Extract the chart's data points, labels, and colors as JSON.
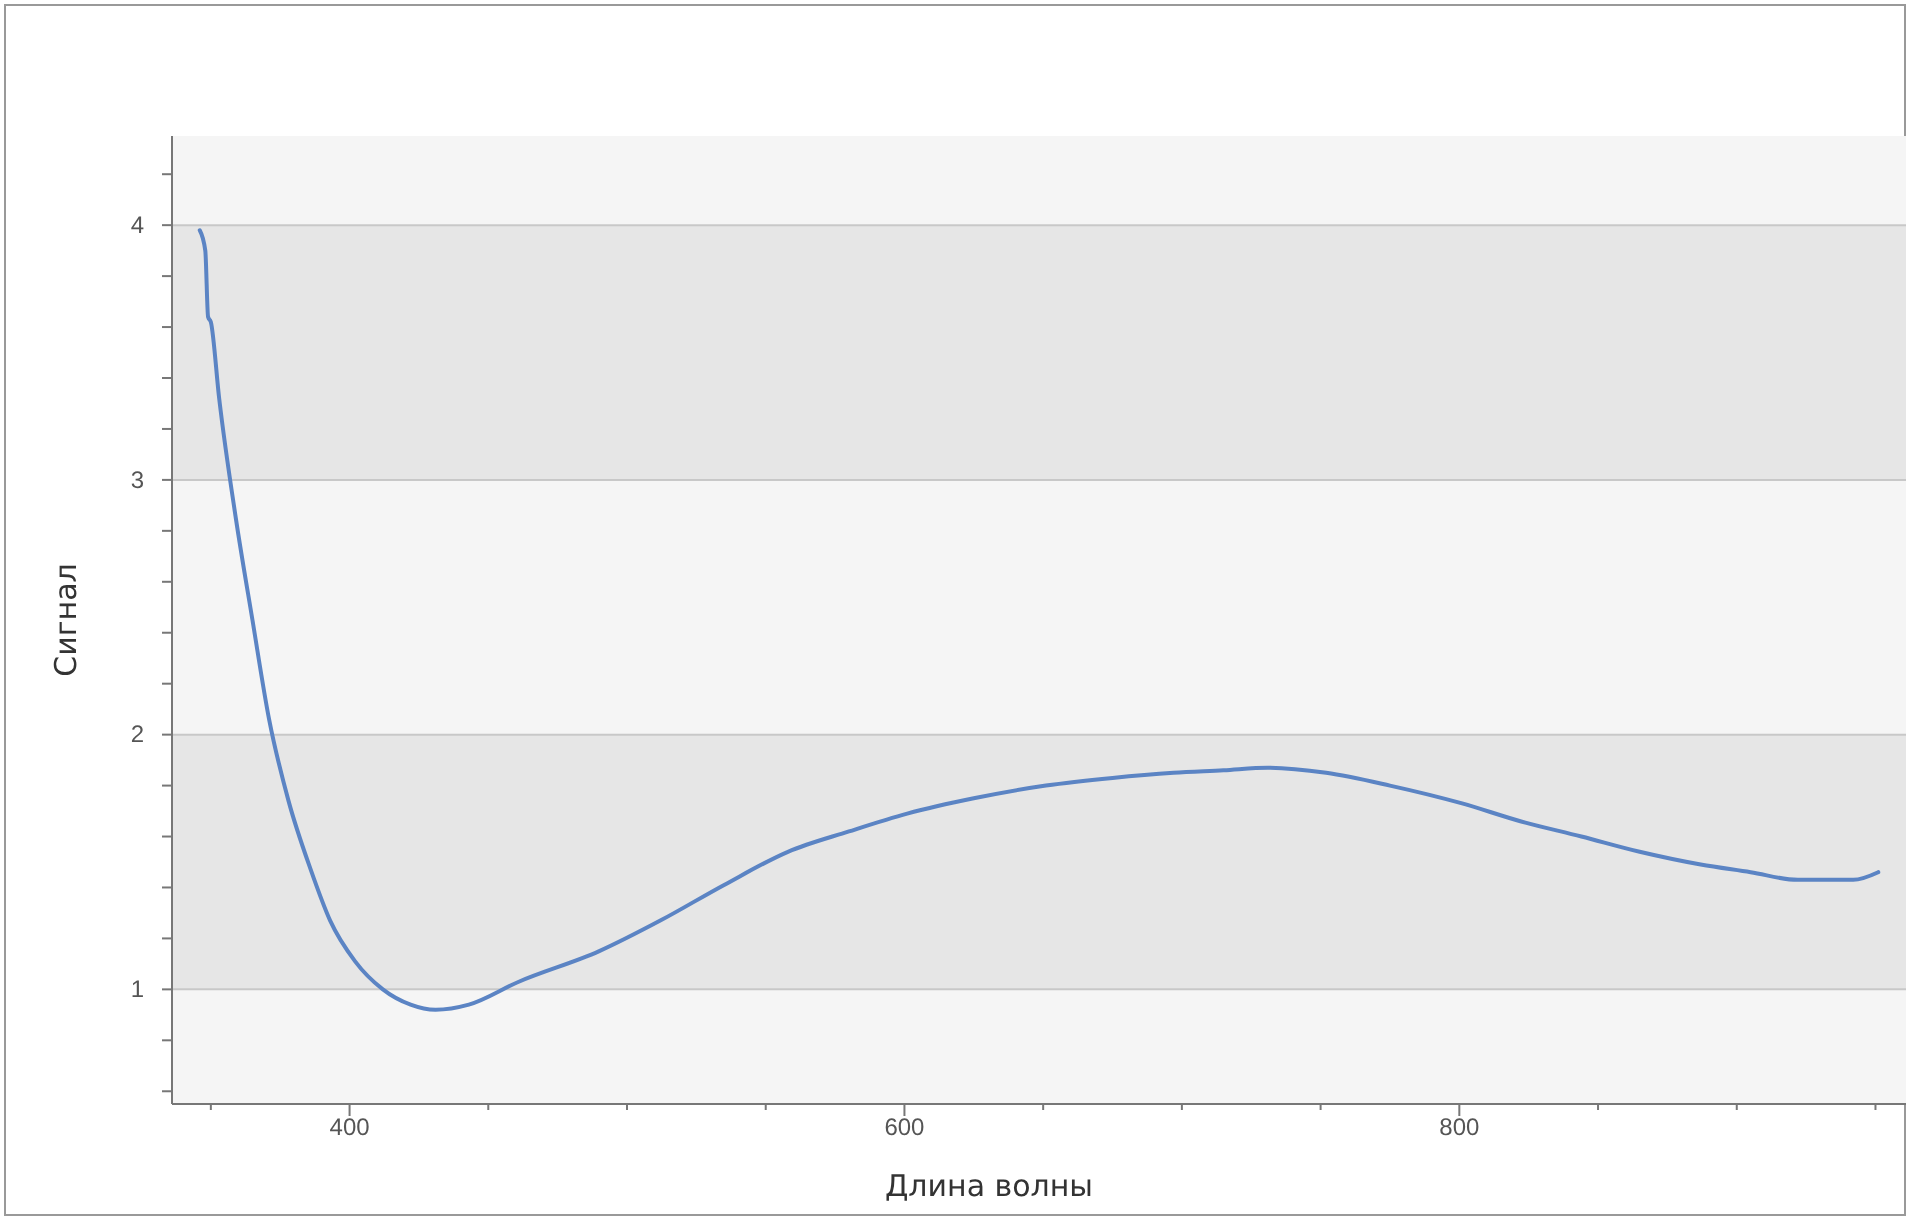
{
  "chart_data": {
    "type": "line",
    "xlabel": "Длина волны",
    "ylabel": "Сигнал",
    "xlim": [
      336,
      961
    ],
    "ylim": [
      0.55,
      4.35
    ],
    "xticks": [
      {
        "value": 350,
        "label": null
      },
      400,
      {
        "value": 450,
        "label": null
      },
      {
        "value": 500,
        "label": null
      },
      {
        "value": 550,
        "label": null
      },
      600,
      {
        "value": 650,
        "label": null
      },
      {
        "value": 700,
        "label": null
      },
      {
        "value": 750,
        "label": null
      },
      800,
      {
        "value": 850,
        "label": null
      },
      {
        "value": 900,
        "label": null
      },
      {
        "value": 950,
        "label": null
      }
    ],
    "yticks": [
      {
        "value": 0.6,
        "label": null
      },
      {
        "value": 0.8,
        "label": null
      },
      1,
      {
        "value": 1.2,
        "label": null
      },
      {
        "value": 1.4,
        "label": null
      },
      {
        "value": 1.6,
        "label": null
      },
      {
        "value": 1.8,
        "label": null
      },
      2,
      {
        "value": 2.2,
        "label": null
      },
      {
        "value": 2.4,
        "label": null
      },
      {
        "value": 2.6,
        "label": null
      },
      {
        "value": 2.8,
        "label": null
      },
      3,
      {
        "value": 3.2,
        "label": null
      },
      {
        "value": 3.4,
        "label": null
      },
      {
        "value": 3.6,
        "label": null
      },
      {
        "value": 3.8,
        "label": null
      },
      4,
      {
        "value": 4.2,
        "label": null
      }
    ],
    "grid": "y",
    "marker": "none",
    "line_style": "solid",
    "bands": [
      {
        "axis": "y",
        "from": 1,
        "to": 2,
        "color": "#e6e6e6"
      },
      {
        "axis": "y",
        "from": 3,
        "to": 4,
        "color": "#e6e6e6"
      }
    ],
    "series": [
      {
        "color": "#5b84c4",
        "x": [
          346,
          348,
          349,
          350,
          353,
          359,
          365,
          371,
          378,
          386,
          393,
          402,
          412,
          422,
          431,
          443,
          461,
          490,
          512,
          535,
          558,
          580,
          601,
          625,
          651,
          675,
          697,
          715,
          731,
          752,
          775,
          801,
          822,
          844,
          865,
          887,
          905,
          922,
          942,
          951
        ],
        "values": [
          3.98,
          3.9,
          3.64,
          3.62,
          3.32,
          2.85,
          2.45,
          2.06,
          1.74,
          1.47,
          1.27,
          1.11,
          1.0,
          0.94,
          0.92,
          0.94,
          1.03,
          1.15,
          1.27,
          1.41,
          1.54,
          1.62,
          1.69,
          1.75,
          1.8,
          1.83,
          1.85,
          1.86,
          1.87,
          1.85,
          1.8,
          1.73,
          1.66,
          1.6,
          1.54,
          1.49,
          1.46,
          1.43,
          1.43,
          1.46
        ]
      }
    ]
  }
}
